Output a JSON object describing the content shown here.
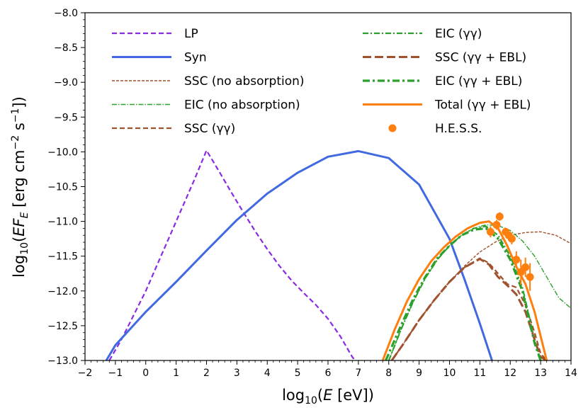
{
  "chart_data": {
    "type": "line",
    "title": "",
    "xlabel": "log10(E [eV])",
    "ylabel": "log10(EF_E [erg cm^-2 s^-1])",
    "xlim": [
      -2,
      14
    ],
    "ylim": [
      -13.0,
      -8.0
    ],
    "xticks": [
      "−2",
      "−1",
      "0",
      "1",
      "2",
      "3",
      "4",
      "5",
      "6",
      "7",
      "8",
      "9",
      "10",
      "11",
      "12",
      "13",
      "14"
    ],
    "yticks": [
      "−13.0",
      "−12.5",
      "−12.0",
      "−11.5",
      "−11.0",
      "−10.5",
      "−10.0",
      "−9.5",
      "−9.0",
      "−8.5",
      "−8.0"
    ],
    "xtick_values": [
      -2,
      -1,
      0,
      1,
      2,
      3,
      4,
      5,
      6,
      7,
      8,
      9,
      10,
      11,
      12,
      13,
      14
    ],
    "ytick_values": [
      -13.0,
      -12.5,
      -12.0,
      -11.5,
      -11.0,
      -10.5,
      -10.0,
      -9.5,
      -9.0,
      -8.5,
      -8.0
    ],
    "grid": false,
    "legend_position": "top",
    "series": [
      {
        "name": "LP",
        "color": "#8a2be2",
        "style": "dashed",
        "x": [
          -1.2,
          -0.8,
          -0.4,
          0,
          0.4,
          0.8,
          1.2,
          1.6,
          2.0,
          2.4,
          2.8,
          3.2,
          3.6,
          4.0,
          4.4,
          4.8,
          5.2,
          5.6,
          6.0,
          6.4,
          6.8,
          7.0
        ],
        "y": [
          -13.0,
          -12.7,
          -12.35,
          -12.0,
          -11.6,
          -11.2,
          -10.8,
          -10.4,
          -9.98,
          -10.27,
          -10.57,
          -10.86,
          -11.14,
          -11.4,
          -11.64,
          -11.85,
          -12.03,
          -12.2,
          -12.4,
          -12.65,
          -12.95,
          -13.05
        ]
      },
      {
        "name": "Syn",
        "color": "#4169e1",
        "style": "solid",
        "x": [
          -1.3,
          -1,
          0,
          1,
          2,
          3,
          4,
          5,
          6,
          7,
          8,
          9,
          10,
          10.5,
          11,
          11.4
        ],
        "y": [
          -13.0,
          -12.78,
          -12.3,
          -11.87,
          -11.42,
          -10.98,
          -10.6,
          -10.3,
          -10.07,
          -9.99,
          -10.09,
          -10.47,
          -11.25,
          -11.84,
          -12.47,
          -13.0
        ]
      },
      {
        "name": "SSC (no absorption)",
        "color": "#a0522d",
        "style": "dotted",
        "x": [
          8.1,
          8.5,
          9,
          9.5,
          10,
          10.5,
          11,
          11.5,
          12,
          12.5,
          13,
          13.5,
          14
        ],
        "y": [
          -13.0,
          -12.75,
          -12.42,
          -12.13,
          -11.87,
          -11.64,
          -11.44,
          -11.3,
          -11.2,
          -11.16,
          -11.15,
          -11.2,
          -11.32
        ]
      },
      {
        "name": "EIC (no absorption)",
        "color": "#2ca02c",
        "style": "dashdot-thin",
        "x": [
          8.0,
          8.4,
          8.8,
          9.2,
          9.6,
          10,
          10.4,
          10.8,
          11.2,
          11.6,
          12,
          12.4,
          12.8,
          13.2,
          13.6,
          14
        ],
        "y": [
          -13.0,
          -12.56,
          -12.16,
          -11.82,
          -11.55,
          -11.35,
          -11.2,
          -11.1,
          -11.05,
          -11.06,
          -11.13,
          -11.28,
          -11.5,
          -11.8,
          -12.1,
          -12.25
        ]
      },
      {
        "name": "SSC (γγ)",
        "color": "#a0522d",
        "style": "dashed",
        "x": [
          8.1,
          8.5,
          9,
          9.5,
          10,
          10.5,
          11,
          11.3,
          11.6,
          11.9,
          12.2,
          12.5,
          12.8,
          13.0,
          13.2
        ],
        "y": [
          -13.0,
          -12.75,
          -12.42,
          -12.13,
          -11.87,
          -11.66,
          -11.53,
          -11.6,
          -11.75,
          -11.9,
          -11.95,
          -12.2,
          -12.6,
          -12.9,
          -13.0
        ]
      },
      {
        "name": "EIC (γγ)",
        "color": "#2ca02c",
        "style": "dashdot",
        "x": [
          8.0,
          8.4,
          8.8,
          9.2,
          9.6,
          10,
          10.4,
          10.8,
          11.2,
          11.6,
          12,
          12.4,
          12.8,
          13.0
        ],
        "y": [
          -13.0,
          -12.56,
          -12.16,
          -11.82,
          -11.55,
          -11.35,
          -11.2,
          -11.1,
          -11.07,
          -11.2,
          -11.5,
          -11.95,
          -12.7,
          -13.0
        ]
      },
      {
        "name": "SSC (γγ + EBL)",
        "color": "#a0522d",
        "style": "longdash",
        "x": [
          8.1,
          8.5,
          9,
          9.5,
          10,
          10.5,
          11,
          11.3,
          11.6,
          11.9,
          12.2,
          12.5,
          12.8,
          13.0,
          13.2
        ],
        "y": [
          -13.0,
          -12.75,
          -12.42,
          -12.13,
          -11.87,
          -11.66,
          -11.54,
          -11.62,
          -11.8,
          -11.92,
          -12.05,
          -12.3,
          -12.7,
          -12.95,
          -13.0
        ]
      },
      {
        "name": "EIC (γγ + EBL)",
        "color": "#2ca02c",
        "style": "dashdot-thick",
        "x": [
          7.9,
          8.4,
          8.8,
          9.2,
          9.6,
          10,
          10.4,
          10.8,
          11.2,
          11.6,
          12,
          12.4,
          12.8,
          13.0
        ],
        "y": [
          -13.0,
          -12.5,
          -12.12,
          -11.8,
          -11.53,
          -11.35,
          -11.2,
          -11.12,
          -11.1,
          -11.25,
          -11.55,
          -12.0,
          -12.75,
          -13.0
        ]
      },
      {
        "name": "Total (γγ + EBL)",
        "color": "#ff7f0e",
        "style": "solid",
        "x": [
          7.8,
          8.2,
          8.6,
          9.0,
          9.4,
          9.8,
          10.2,
          10.6,
          11.0,
          11.3,
          11.6,
          11.9,
          12.2,
          12.5,
          12.8,
          13.0,
          13.2
        ],
        "y": [
          -13.0,
          -12.55,
          -12.15,
          -11.83,
          -11.57,
          -11.38,
          -11.22,
          -11.1,
          -11.02,
          -11.0,
          -11.1,
          -11.35,
          -11.65,
          -11.9,
          -12.3,
          -12.65,
          -13.0
        ]
      }
    ],
    "points": {
      "name": "H.E.S.S.",
      "color": "#ff7f0e",
      "x": [
        11.35,
        11.55,
        11.65,
        11.85,
        11.95,
        12.05,
        12.2,
        12.35,
        12.5,
        12.65
      ],
      "y": [
        -11.15,
        -11.05,
        -10.93,
        -11.15,
        -11.2,
        -11.25,
        -11.55,
        -11.73,
        -11.66,
        -11.8
      ],
      "err": [
        0.08,
        0.07,
        0.06,
        0.06,
        0.08,
        0.08,
        0.12,
        0.18,
        0.14,
        0.2
      ]
    },
    "legend": {
      "left": [
        "LP",
        "Syn",
        "SSC (no absorption)",
        "EIC (no absorption)",
        "SSC (γγ)"
      ],
      "right": [
        "EIC (γγ)",
        "SSC (γγ + EBL)",
        "EIC (γγ + EBL)",
        "Total (γγ + EBL)",
        "H.E.S.S."
      ]
    }
  }
}
